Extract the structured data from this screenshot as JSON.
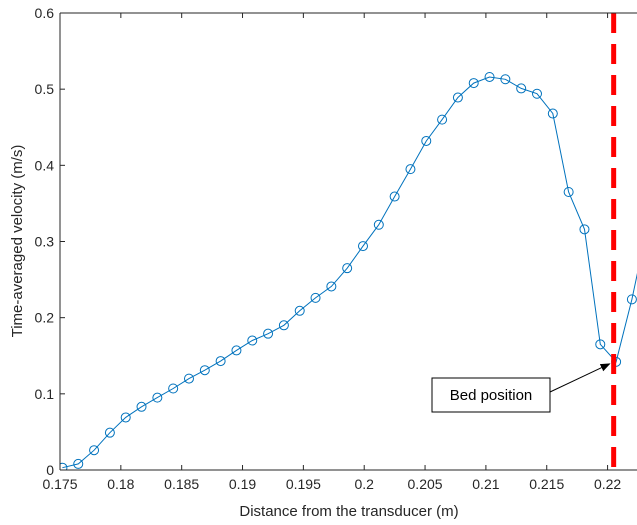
{
  "chart_data": {
    "type": "line",
    "title": "",
    "xlabel": "Distance from the transducer (m)",
    "ylabel": "Time-averaged velocity (m/s)",
    "xlim": [
      0.175,
      0.2225
    ],
    "ylim": [
      0,
      0.6
    ],
    "x_ticks": [
      0.175,
      0.18,
      0.185,
      0.19,
      0.195,
      0.2,
      0.205,
      0.21,
      0.215,
      0.22
    ],
    "x_tick_labels": [
      "0.175",
      "0.18",
      "0.185",
      "0.19",
      "0.195",
      "0.2",
      "0.205",
      "0.21",
      "0.215",
      "0.22"
    ],
    "y_ticks": [
      0,
      0.1,
      0.2,
      0.3,
      0.4,
      0.5,
      0.6
    ],
    "y_tick_labels": [
      "0",
      "0.1",
      "0.2",
      "0.3",
      "0.4",
      "0.5",
      "0.6"
    ],
    "grid": false,
    "series": [
      {
        "color": "#0072BD",
        "marker": "circle-open",
        "x": [
          0.1752,
          0.1765,
          0.1778,
          0.1791,
          0.1804,
          0.1817,
          0.183,
          0.1843,
          0.1856,
          0.1869,
          0.1882,
          0.1895,
          0.1908,
          0.1921,
          0.1934,
          0.1947,
          0.196,
          0.1973,
          0.1986,
          0.1999,
          0.2012,
          0.2025,
          0.2038,
          0.2051,
          0.2064,
          0.2077,
          0.209,
          0.2103,
          0.2116,
          0.2129,
          0.2142,
          0.2155,
          0.2168,
          0.2181,
          0.2194,
          0.2207,
          0.222,
          0.2233
        ],
        "y": [
          0.003,
          0.008,
          0.026,
          0.049,
          0.069,
          0.083,
          0.095,
          0.107,
          0.12,
          0.131,
          0.143,
          0.157,
          0.17,
          0.179,
          0.19,
          0.209,
          0.226,
          0.241,
          0.265,
          0.294,
          0.322,
          0.359,
          0.395,
          0.432,
          0.46,
          0.489,
          0.508,
          0.516,
          0.513,
          0.501,
          0.494,
          0.468,
          0.365,
          0.316,
          0.165,
          0.142,
          0.224,
          0.322
        ]
      }
    ],
    "reference_line": {
      "type": "vertical",
      "x": 0.2205,
      "color": "#FF0000",
      "style": "dashed"
    },
    "annotation": {
      "text": "Bed position",
      "arrow_to": {
        "x": 0.2205,
        "y": 0.142
      }
    }
  }
}
